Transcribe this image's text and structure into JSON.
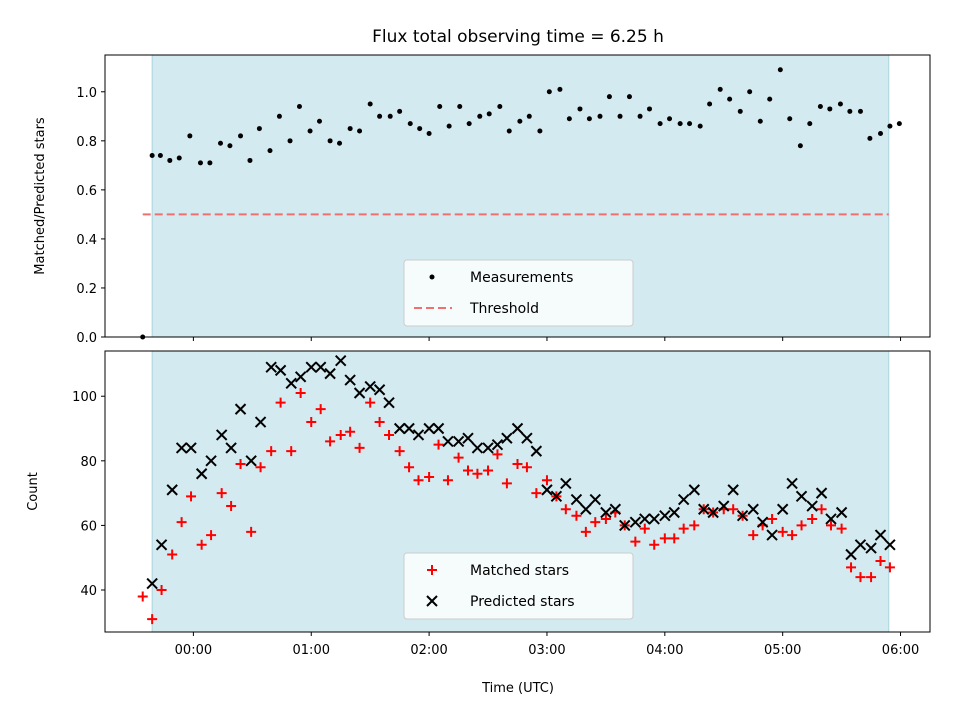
{
  "title": "Flux total observing time = 6.25 h",
  "xlabel": "Time (UTC)",
  "x_ticks": [
    "00:00",
    "01:00",
    "02:00",
    "03:00",
    "04:00",
    "05:00",
    "06:00"
  ],
  "colors": {
    "shade": "#d3eaf0",
    "threshold": "#f07070",
    "matched": "#ff0000",
    "predicted": "#000000",
    "measurement": "#000000"
  },
  "chart_data": [
    {
      "type": "scatter",
      "panel": "top",
      "ylabel": "Matched/Predicted stars",
      "xlim": [
        -0.75,
        6.25
      ],
      "ylim": [
        0,
        1.15
      ],
      "y_ticks": [
        "0.0",
        "0.2",
        "0.4",
        "0.6",
        "0.8",
        "1.0"
      ],
      "x_unit": "hours since 00:00 UTC",
      "shaded_interval": [
        -0.35,
        5.9
      ],
      "legend": {
        "placement": "lower center",
        "entries": [
          "Measurements",
          "Threshold"
        ]
      },
      "threshold": {
        "name": "Threshold",
        "y": 0.5,
        "x_range": [
          -0.43,
          5.9
        ]
      },
      "series": [
        {
          "name": "Measurements",
          "points": [
            [
              -0.43,
              0.0
            ],
            [
              -0.35,
              0.74
            ],
            [
              -0.28,
              0.74
            ],
            [
              -0.2,
              0.72
            ],
            [
              -0.12,
              0.73
            ],
            [
              -0.03,
              0.82
            ],
            [
              0.06,
              0.71
            ],
            [
              0.14,
              0.71
            ],
            [
              0.23,
              0.79
            ],
            [
              0.31,
              0.78
            ],
            [
              0.4,
              0.82
            ],
            [
              0.48,
              0.72
            ],
            [
              0.56,
              0.85
            ],
            [
              0.65,
              0.76
            ],
            [
              0.73,
              0.9
            ],
            [
              0.82,
              0.8
            ],
            [
              0.9,
              0.94
            ],
            [
              0.99,
              0.84
            ],
            [
              1.07,
              0.88
            ],
            [
              1.16,
              0.8
            ],
            [
              1.24,
              0.79
            ],
            [
              1.33,
              0.85
            ],
            [
              1.41,
              0.84
            ],
            [
              1.5,
              0.95
            ],
            [
              1.58,
              0.9
            ],
            [
              1.67,
              0.9
            ],
            [
              1.75,
              0.92
            ],
            [
              1.84,
              0.87
            ],
            [
              1.92,
              0.85
            ],
            [
              2.0,
              0.83
            ],
            [
              2.09,
              0.94
            ],
            [
              2.17,
              0.86
            ],
            [
              2.26,
              0.94
            ],
            [
              2.34,
              0.87
            ],
            [
              2.43,
              0.9
            ],
            [
              2.51,
              0.91
            ],
            [
              2.6,
              0.94
            ],
            [
              2.68,
              0.84
            ],
            [
              2.77,
              0.88
            ],
            [
              2.85,
              0.9
            ],
            [
              2.94,
              0.84
            ],
            [
              3.02,
              1.0
            ],
            [
              3.11,
              1.01
            ],
            [
              3.19,
              0.89
            ],
            [
              3.28,
              0.93
            ],
            [
              3.36,
              0.89
            ],
            [
              3.45,
              0.9
            ],
            [
              3.53,
              0.98
            ],
            [
              3.62,
              0.9
            ],
            [
              3.7,
              0.98
            ],
            [
              3.79,
              0.9
            ],
            [
              3.87,
              0.93
            ],
            [
              3.96,
              0.87
            ],
            [
              4.04,
              0.89
            ],
            [
              4.13,
              0.87
            ],
            [
              4.21,
              0.87
            ],
            [
              4.3,
              0.86
            ],
            [
              4.38,
              0.95
            ],
            [
              4.47,
              1.01
            ],
            [
              4.55,
              0.97
            ],
            [
              4.64,
              0.92
            ],
            [
              4.72,
              1.0
            ],
            [
              4.81,
              0.88
            ],
            [
              4.89,
              0.97
            ],
            [
              4.98,
              1.09
            ],
            [
              5.06,
              0.89
            ],
            [
              5.15,
              0.78
            ],
            [
              5.23,
              0.87
            ],
            [
              5.32,
              0.94
            ],
            [
              5.4,
              0.93
            ],
            [
              5.49,
              0.95
            ],
            [
              5.57,
              0.92
            ],
            [
              5.66,
              0.92
            ],
            [
              5.74,
              0.81
            ],
            [
              5.83,
              0.83
            ],
            [
              5.91,
              0.86
            ],
            [
              5.99,
              0.87
            ]
          ]
        }
      ]
    },
    {
      "type": "scatter",
      "panel": "bottom",
      "ylabel": "Count",
      "xlabel": "Time (UTC)",
      "xlim": [
        -0.75,
        6.25
      ],
      "ylim": [
        27,
        114
      ],
      "y_ticks": [
        "40",
        "60",
        "80",
        "100"
      ],
      "x_unit": "hours since 00:00 UTC",
      "shaded_interval": [
        -0.35,
        5.9
      ],
      "legend": {
        "placement": "lower center",
        "entries": [
          "Matched stars",
          "Predicted stars"
        ]
      },
      "series": [
        {
          "name": "Matched stars",
          "marker": "+",
          "points": [
            [
              -0.43,
              38
            ],
            [
              -0.35,
              31
            ],
            [
              -0.27,
              40
            ],
            [
              -0.18,
              51
            ],
            [
              -0.1,
              61
            ],
            [
              -0.02,
              69
            ],
            [
              0.07,
              54
            ],
            [
              0.15,
              57
            ],
            [
              0.24,
              70
            ],
            [
              0.32,
              66
            ],
            [
              0.4,
              79
            ],
            [
              0.49,
              58
            ],
            [
              0.57,
              78
            ],
            [
              0.66,
              83
            ],
            [
              0.74,
              98
            ],
            [
              0.83,
              83
            ],
            [
              0.91,
              101
            ],
            [
              1.0,
              92
            ],
            [
              1.08,
              96
            ],
            [
              1.16,
              86
            ],
            [
              1.25,
              88
            ],
            [
              1.33,
              89
            ],
            [
              1.41,
              84
            ],
            [
              1.5,
              98
            ],
            [
              1.58,
              92
            ],
            [
              1.66,
              88
            ],
            [
              1.75,
              83
            ],
            [
              1.83,
              78
            ],
            [
              1.91,
              74
            ],
            [
              2.0,
              75
            ],
            [
              2.08,
              85
            ],
            [
              2.16,
              74
            ],
            [
              2.25,
              81
            ],
            [
              2.33,
              77
            ],
            [
              2.41,
              76
            ],
            [
              2.5,
              77
            ],
            [
              2.58,
              82
            ],
            [
              2.66,
              73
            ],
            [
              2.75,
              79
            ],
            [
              2.83,
              78
            ],
            [
              2.91,
              70
            ],
            [
              3.0,
              74
            ],
            [
              3.08,
              69
            ],
            [
              3.16,
              65
            ],
            [
              3.25,
              63
            ],
            [
              3.33,
              58
            ],
            [
              3.41,
              61
            ],
            [
              3.5,
              62
            ],
            [
              3.58,
              64
            ],
            [
              3.66,
              60
            ],
            [
              3.75,
              55
            ],
            [
              3.83,
              59
            ],
            [
              3.91,
              54
            ],
            [
              4.0,
              56
            ],
            [
              4.08,
              56
            ],
            [
              4.16,
              59
            ],
            [
              4.25,
              60
            ],
            [
              4.33,
              65
            ],
            [
              4.41,
              64
            ],
            [
              4.5,
              65
            ],
            [
              4.58,
              65
            ],
            [
              4.66,
              63
            ],
            [
              4.75,
              57
            ],
            [
              4.83,
              60
            ],
            [
              4.91,
              62
            ],
            [
              5.0,
              58
            ],
            [
              5.08,
              57
            ],
            [
              5.16,
              60
            ],
            [
              5.25,
              62
            ],
            [
              5.33,
              65
            ],
            [
              5.41,
              60
            ],
            [
              5.5,
              59
            ],
            [
              5.58,
              47
            ],
            [
              5.66,
              44
            ],
            [
              5.75,
              44
            ],
            [
              5.83,
              49
            ],
            [
              5.91,
              47
            ]
          ]
        },
        {
          "name": "Predicted stars",
          "marker": "x",
          "points": [
            [
              -0.35,
              42
            ],
            [
              -0.27,
              54
            ],
            [
              -0.18,
              71
            ],
            [
              -0.1,
              84
            ],
            [
              -0.02,
              84
            ],
            [
              0.07,
              76
            ],
            [
              0.15,
              80
            ],
            [
              0.24,
              88
            ],
            [
              0.32,
              84
            ],
            [
              0.4,
              96
            ],
            [
              0.49,
              80
            ],
            [
              0.57,
              92
            ],
            [
              0.66,
              109
            ],
            [
              0.74,
              108
            ],
            [
              0.83,
              104
            ],
            [
              0.91,
              106
            ],
            [
              1.0,
              109
            ],
            [
              1.08,
              109
            ],
            [
              1.16,
              107
            ],
            [
              1.25,
              111
            ],
            [
              1.33,
              105
            ],
            [
              1.41,
              101
            ],
            [
              1.5,
              103
            ],
            [
              1.58,
              102
            ],
            [
              1.66,
              98
            ],
            [
              1.75,
              90
            ],
            [
              1.83,
              90
            ],
            [
              1.91,
              88
            ],
            [
              2.0,
              90
            ],
            [
              2.08,
              90
            ],
            [
              2.16,
              86
            ],
            [
              2.25,
              86
            ],
            [
              2.33,
              87
            ],
            [
              2.41,
              84
            ],
            [
              2.5,
              84
            ],
            [
              2.58,
              85
            ],
            [
              2.66,
              87
            ],
            [
              2.75,
              90
            ],
            [
              2.83,
              87
            ],
            [
              2.91,
              83
            ],
            [
              3.0,
              71
            ],
            [
              3.08,
              69
            ],
            [
              3.16,
              73
            ],
            [
              3.25,
              68
            ],
            [
              3.33,
              65
            ],
            [
              3.41,
              68
            ],
            [
              3.5,
              64
            ],
            [
              3.58,
              65
            ],
            [
              3.66,
              60
            ],
            [
              3.75,
              61
            ],
            [
              3.83,
              62
            ],
            [
              3.91,
              62
            ],
            [
              4.0,
              63
            ],
            [
              4.08,
              64
            ],
            [
              4.16,
              68
            ],
            [
              4.25,
              71
            ],
            [
              4.33,
              65
            ],
            [
              4.41,
              64
            ],
            [
              4.5,
              66
            ],
            [
              4.58,
              71
            ],
            [
              4.66,
              63
            ],
            [
              4.75,
              65
            ],
            [
              4.83,
              61
            ],
            [
              4.91,
              57
            ],
            [
              5.0,
              65
            ],
            [
              5.08,
              73
            ],
            [
              5.16,
              69
            ],
            [
              5.25,
              66
            ],
            [
              5.33,
              70
            ],
            [
              5.41,
              62
            ],
            [
              5.5,
              64
            ],
            [
              5.58,
              51
            ],
            [
              5.66,
              54
            ],
            [
              5.75,
              53
            ],
            [
              5.83,
              57
            ],
            [
              5.91,
              54
            ]
          ]
        }
      ]
    }
  ]
}
